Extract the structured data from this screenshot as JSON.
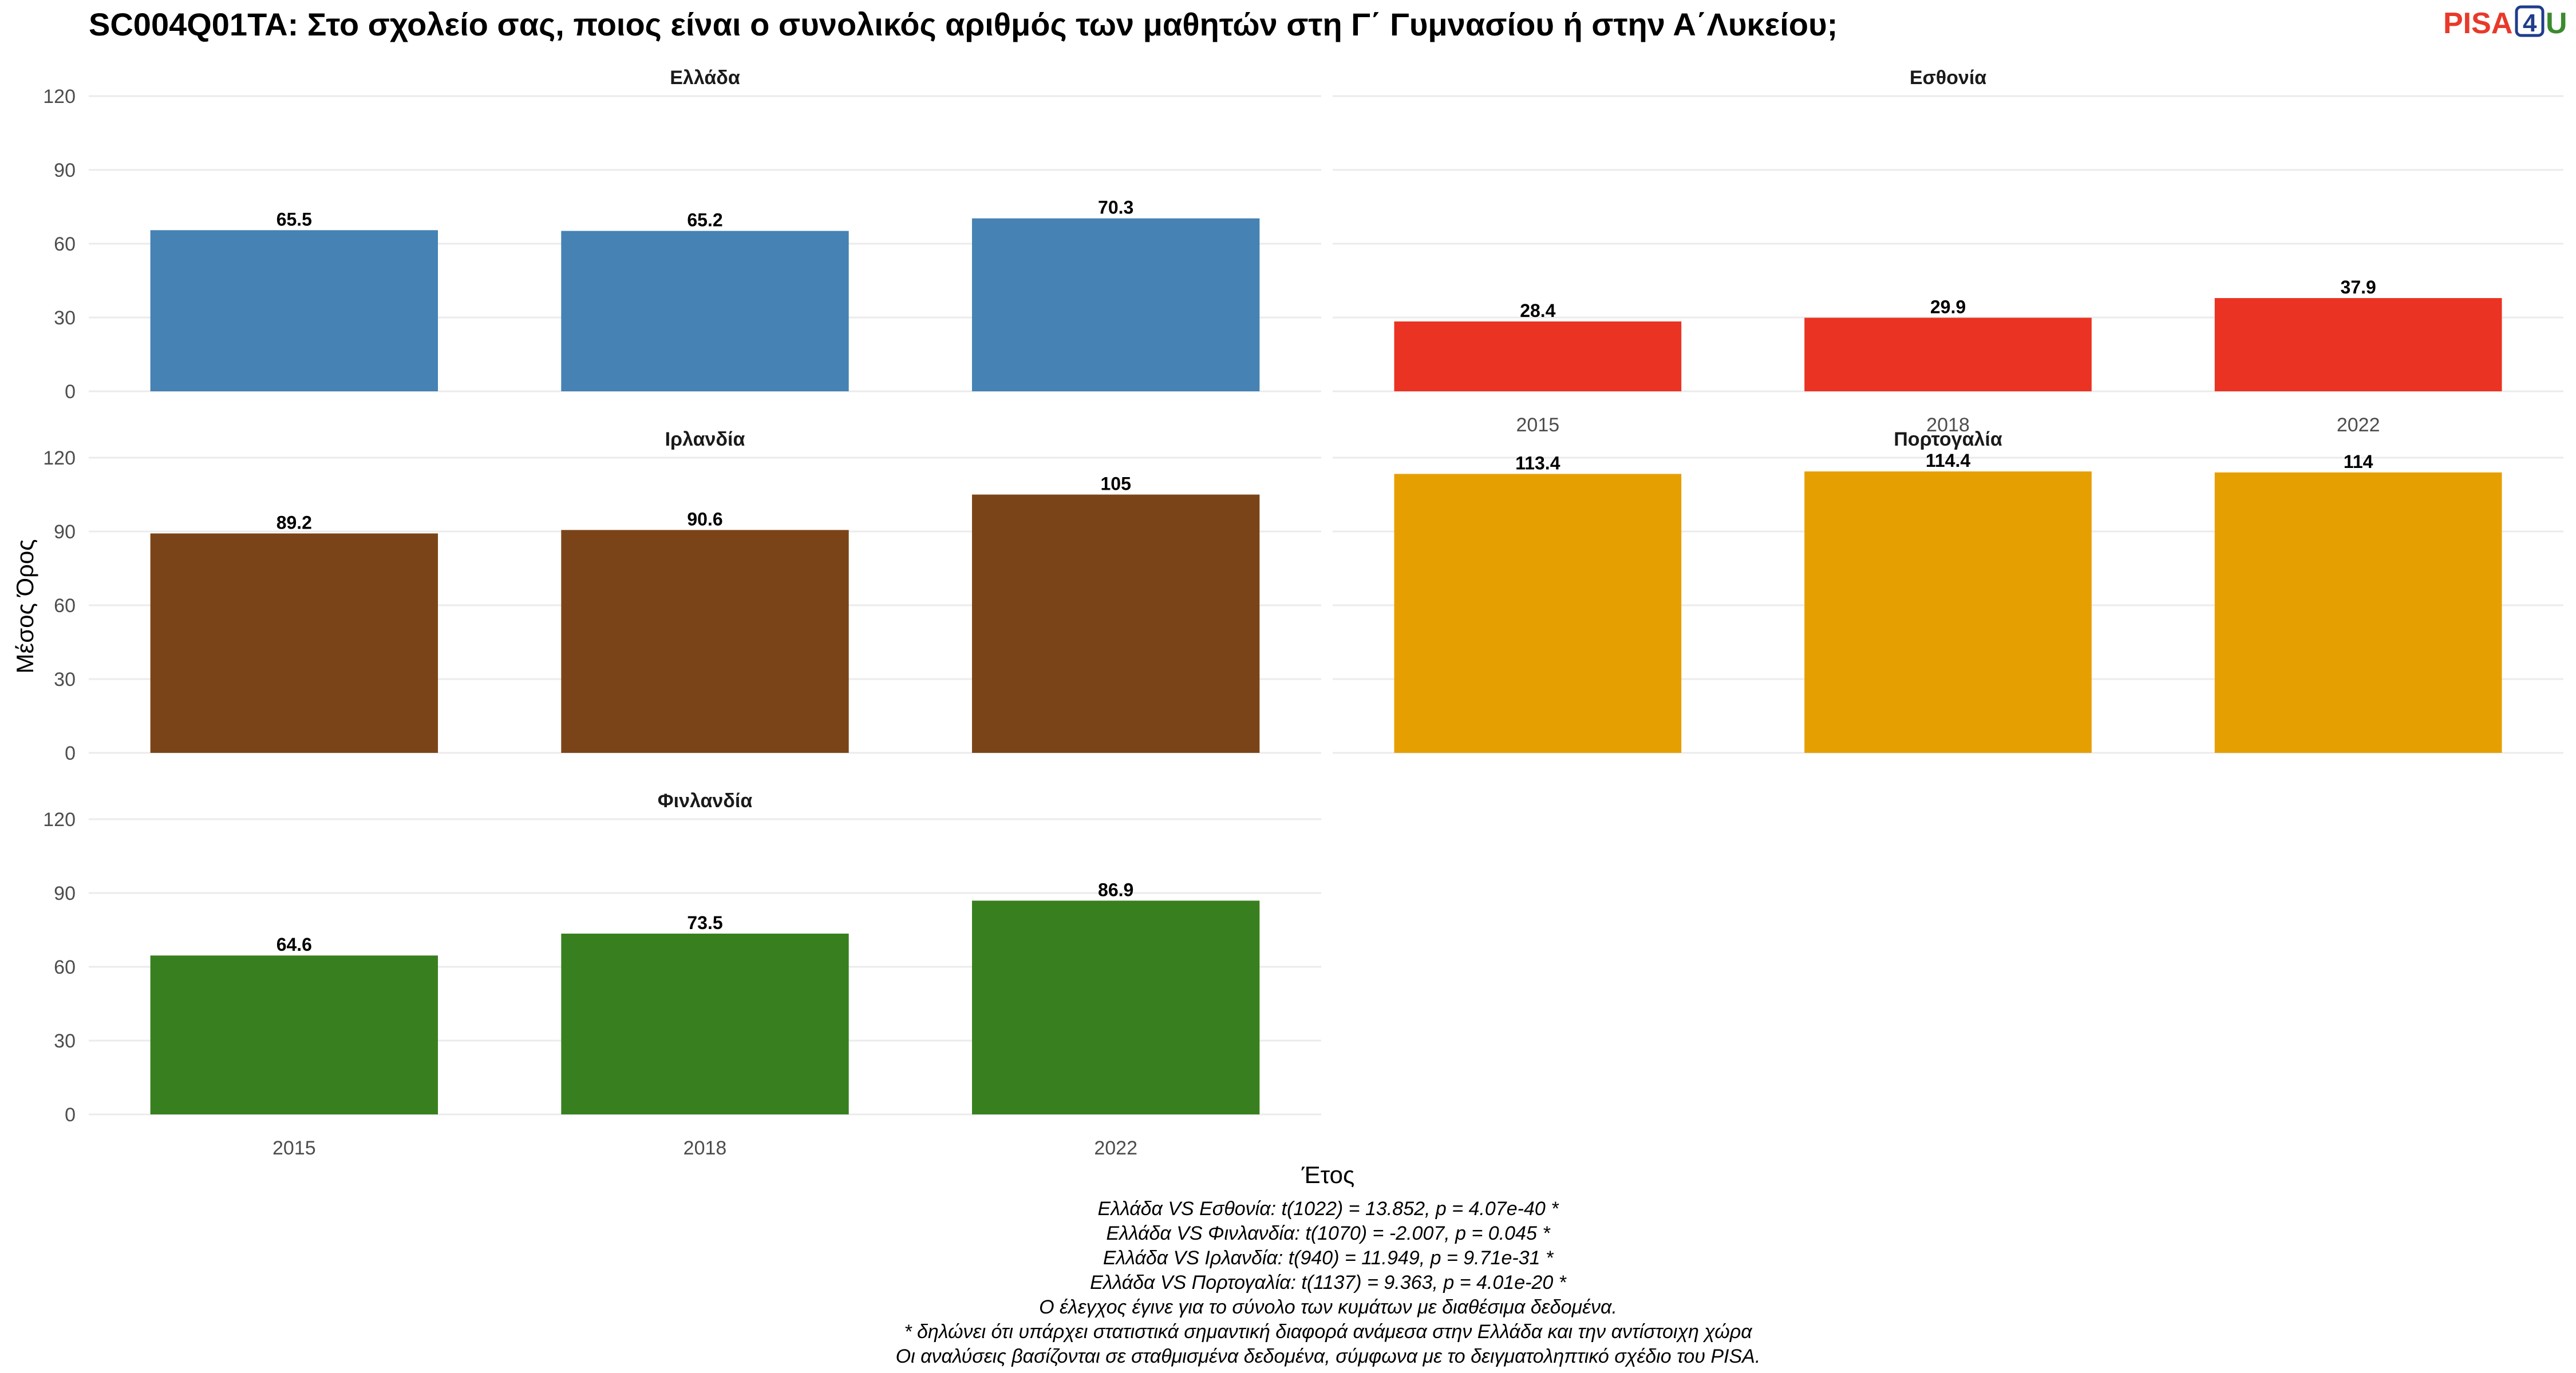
{
  "title": "SC004Q01TA: Στο σχολείο σας, ποιος είναι ο συνολικός αριθμός των μαθητών στη Γ΄ Γυμνασίου ή στην Α΄Λυκείου;",
  "logo": {
    "part_a": "PISA",
    "part_b": "4",
    "part_c": "U"
  },
  "chart_data": {
    "type": "bar",
    "xlabel": "Έτος",
    "ylabel": "Μέσος Όρος",
    "ylim": [
      0,
      120
    ],
    "yticks": [
      0,
      30,
      60,
      90,
      120
    ],
    "categories": [
      "2015",
      "2018",
      "2022"
    ],
    "facets": [
      {
        "name": "Ελλάδα",
        "color": "#4682b4",
        "values": [
          65.5,
          65.2,
          70.3
        ],
        "labels": [
          "65.5",
          "65.2",
          "70.3"
        ]
      },
      {
        "name": "Εσθονία",
        "color": "#ea3323",
        "values": [
          28.4,
          29.9,
          37.9
        ],
        "labels": [
          "28.4",
          "29.9",
          "37.9"
        ]
      },
      {
        "name": "Ιρλανδία",
        "color": "#7b4418",
        "values": [
          89.2,
          90.6,
          105
        ],
        "labels": [
          "89.2",
          "90.6",
          "105"
        ]
      },
      {
        "name": "Πορτογαλία",
        "color": "#e69f00",
        "values": [
          113.4,
          114.4,
          114
        ],
        "labels": [
          "113.4",
          "114.4",
          "114"
        ]
      },
      {
        "name": "Φινλανδία",
        "color": "#38801f",
        "values": [
          64.6,
          73.5,
          86.9
        ],
        "labels": [
          "64.6",
          "73.5",
          "86.9"
        ]
      }
    ],
    "legend": "none",
    "grid": true
  },
  "caption_lines": [
    "Ελλάδα VS Εσθονία: t(1022) = 13.852, p = 4.07e-40 *",
    "Ελλάδα VS Φινλανδία: t(1070) = -2.007, p = 0.045 *",
    "Ελλάδα VS Ιρλανδία: t(940) = 11.949, p = 9.71e-31 *",
    "Ελλάδα VS Πορτογαλία: t(1137) = 9.363, p = 4.01e-20 *",
    "Ο έλεγχος έγινε για το σύνολο των κυμάτων με διαθέσιμα δεδομένα.",
    "* δηλώνει ότι υπάρχει στατιστικά σημαντική διαφορά ανάμεσα στην Ελλάδα και την αντίστοιχη χώρα",
    "Οι αναλύσεις βασίζονται σε σταθμισμένα δεδομένα, σύμφωνα με το δειγματοληπτικό σχέδιο του PISA."
  ]
}
